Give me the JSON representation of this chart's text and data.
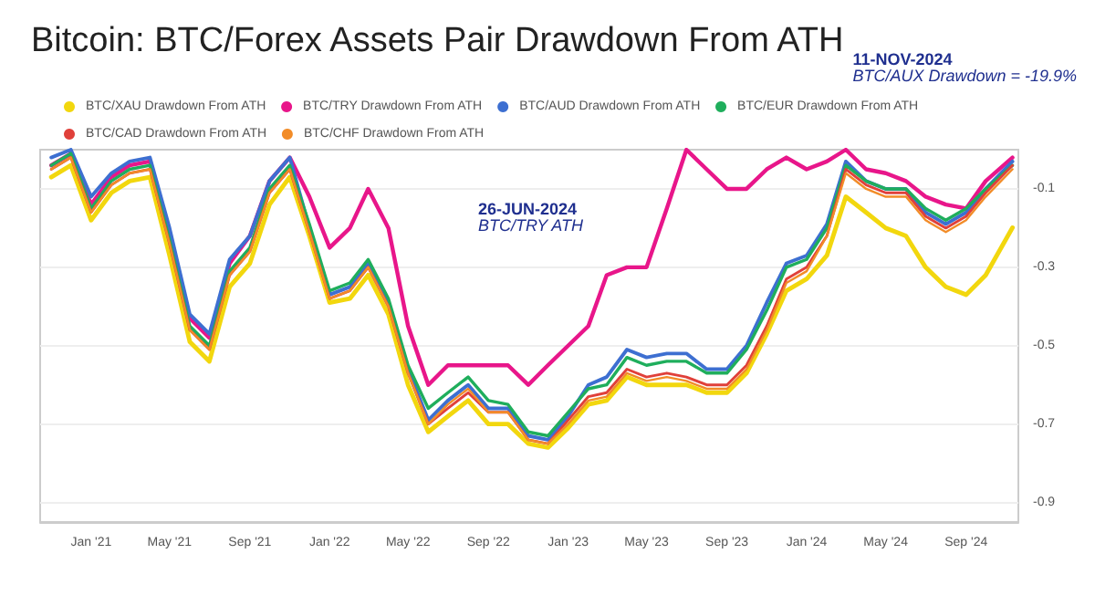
{
  "chart_data": {
    "type": "line",
    "title": "Bitcoin: BTC/Forex Assets Pair Drawdown From ATH",
    "annotations": [
      "26-JUN-2024\nBTC/TRY ATH",
      "11-NOV-2024\nBTC/AUX Drawdown = -19.9%"
    ],
    "x": [
      "2020-11-01",
      "2020-12-01",
      "2021-01-01",
      "2021-02-01",
      "2021-03-01",
      "2021-04-01",
      "2021-05-01",
      "2021-06-01",
      "2021-07-01",
      "2021-08-01",
      "2021-09-01",
      "2021-10-01",
      "2021-11-01",
      "2021-12-01",
      "2022-01-01",
      "2022-02-01",
      "2022-03-01",
      "2022-04-01",
      "2022-05-01",
      "2022-06-01",
      "2022-07-01",
      "2022-08-01",
      "2022-09-01",
      "2022-10-01",
      "2022-11-01",
      "2022-12-01",
      "2023-01-01",
      "2023-02-01",
      "2023-03-01",
      "2023-04-01",
      "2023-05-01",
      "2023-06-01",
      "2023-07-01",
      "2023-08-01",
      "2023-09-01",
      "2023-10-01",
      "2023-11-01",
      "2023-12-01",
      "2024-01-01",
      "2024-02-01",
      "2024-03-01",
      "2024-04-01",
      "2024-05-01",
      "2024-06-01",
      "2024-07-01",
      "2024-08-01",
      "2024-09-01",
      "2024-10-01",
      "2024-11-11"
    ],
    "series": [
      {
        "name": "BTC/XAU Drawdown From ATH",
        "color": "#f2d70e",
        "values": [
          -0.07,
          -0.04,
          -0.18,
          -0.11,
          -0.08,
          -0.07,
          -0.27,
          -0.49,
          -0.54,
          -0.35,
          -0.29,
          -0.14,
          -0.07,
          -0.22,
          -0.39,
          -0.38,
          -0.32,
          -0.42,
          -0.6,
          -0.72,
          -0.68,
          -0.64,
          -0.7,
          -0.7,
          -0.75,
          -0.76,
          -0.71,
          -0.65,
          -0.64,
          -0.58,
          -0.6,
          -0.6,
          -0.6,
          -0.62,
          -0.62,
          -0.57,
          -0.47,
          -0.36,
          -0.33,
          -0.27,
          -0.12,
          -0.16,
          -0.2,
          -0.22,
          -0.3,
          -0.35,
          -0.37,
          -0.32,
          -0.199
        ]
      },
      {
        "name": "BTC/TRY Drawdown From ATH",
        "color": "#e8168a",
        "values": [
          -0.04,
          -0.01,
          -0.14,
          -0.07,
          -0.04,
          -0.03,
          -0.21,
          -0.43,
          -0.48,
          -0.29,
          -0.22,
          -0.08,
          -0.02,
          -0.12,
          -0.25,
          -0.2,
          -0.1,
          -0.2,
          -0.45,
          -0.6,
          -0.55,
          -0.55,
          -0.55,
          -0.55,
          -0.6,
          -0.55,
          -0.5,
          -0.45,
          -0.32,
          -0.3,
          -0.3,
          -0.15,
          0,
          -0.05,
          -0.1,
          -0.1,
          -0.05,
          -0.02,
          -0.05,
          -0.03,
          0,
          -0.05,
          -0.06,
          -0.08,
          -0.12,
          -0.14,
          -0.15,
          -0.08,
          -0.02
        ]
      },
      {
        "name": "BTC/AUD Drawdown From ATH",
        "color": "#3d6fd1",
        "values": [
          -0.02,
          0,
          -0.12,
          -0.06,
          -0.03,
          -0.02,
          -0.2,
          -0.42,
          -0.47,
          -0.28,
          -0.22,
          -0.08,
          -0.02,
          -0.2,
          -0.37,
          -0.35,
          -0.29,
          -0.39,
          -0.56,
          -0.69,
          -0.64,
          -0.6,
          -0.66,
          -0.66,
          -0.73,
          -0.74,
          -0.68,
          -0.6,
          -0.58,
          -0.51,
          -0.53,
          -0.52,
          -0.52,
          -0.56,
          -0.56,
          -0.5,
          -0.39,
          -0.29,
          -0.27,
          -0.19,
          -0.03,
          -0.08,
          -0.1,
          -0.1,
          -0.16,
          -0.19,
          -0.16,
          -0.1,
          -0.03
        ]
      },
      {
        "name": "BTC/EUR Drawdown From ATH",
        "color": "#1fae5c",
        "values": [
          -0.04,
          -0.01,
          -0.15,
          -0.08,
          -0.05,
          -0.04,
          -0.23,
          -0.45,
          -0.5,
          -0.31,
          -0.25,
          -0.1,
          -0.04,
          -0.19,
          -0.36,
          -0.34,
          -0.28,
          -0.38,
          -0.55,
          -0.66,
          -0.62,
          -0.58,
          -0.64,
          -0.65,
          -0.72,
          -0.73,
          -0.67,
          -0.61,
          -0.6,
          -0.53,
          -0.55,
          -0.54,
          -0.54,
          -0.57,
          -0.57,
          -0.51,
          -0.41,
          -0.3,
          -0.28,
          -0.2,
          -0.04,
          -0.08,
          -0.1,
          -0.1,
          -0.15,
          -0.18,
          -0.15,
          -0.1,
          -0.04
        ]
      },
      {
        "name": "BTC/CAD Drawdown From ATH",
        "color": "#e0403a",
        "values": [
          -0.05,
          -0.02,
          -0.16,
          -0.09,
          -0.06,
          -0.05,
          -0.24,
          -0.46,
          -0.51,
          -0.32,
          -0.26,
          -0.11,
          -0.05,
          -0.21,
          -0.38,
          -0.36,
          -0.3,
          -0.4,
          -0.57,
          -0.7,
          -0.66,
          -0.62,
          -0.67,
          -0.67,
          -0.74,
          -0.75,
          -0.69,
          -0.63,
          -0.62,
          -0.56,
          -0.58,
          -0.57,
          -0.58,
          -0.6,
          -0.6,
          -0.55,
          -0.45,
          -0.33,
          -0.3,
          -0.22,
          -0.05,
          -0.09,
          -0.11,
          -0.11,
          -0.17,
          -0.2,
          -0.17,
          -0.11,
          -0.04
        ]
      },
      {
        "name": "BTC/CHF Drawdown From ATH",
        "color": "#f28c28",
        "values": [
          -0.05,
          -0.02,
          -0.16,
          -0.09,
          -0.06,
          -0.05,
          -0.24,
          -0.46,
          -0.51,
          -0.32,
          -0.26,
          -0.11,
          -0.05,
          -0.21,
          -0.38,
          -0.36,
          -0.3,
          -0.4,
          -0.57,
          -0.7,
          -0.65,
          -0.61,
          -0.67,
          -0.67,
          -0.74,
          -0.75,
          -0.7,
          -0.64,
          -0.63,
          -0.57,
          -0.59,
          -0.58,
          -0.59,
          -0.61,
          -0.61,
          -0.56,
          -0.46,
          -0.34,
          -0.31,
          -0.22,
          -0.06,
          -0.1,
          -0.12,
          -0.12,
          -0.18,
          -0.21,
          -0.18,
          -0.12,
          -0.05
        ]
      }
    ],
    "xlim": [
      "2020-10-15",
      "2024-11-20"
    ],
    "xticks": [
      {
        "value": "2021-01-01",
        "label": "Jan '21"
      },
      {
        "value": "2021-05-01",
        "label": "May '21"
      },
      {
        "value": "2021-09-01",
        "label": "Sep '21"
      },
      {
        "value": "2022-01-01",
        "label": "Jan '22"
      },
      {
        "value": "2022-05-01",
        "label": "May '22"
      },
      {
        "value": "2022-09-01",
        "label": "Sep '22"
      },
      {
        "value": "2023-01-01",
        "label": "Jan '23"
      },
      {
        "value": "2023-05-01",
        "label": "May '23"
      },
      {
        "value": "2023-09-01",
        "label": "Sep '23"
      },
      {
        "value": "2024-01-01",
        "label": "Jan '24"
      },
      {
        "value": "2024-05-01",
        "label": "May '24"
      },
      {
        "value": "2024-09-01",
        "label": "Sep '24"
      }
    ],
    "ylim": [
      -0.95,
      0
    ],
    "yticks": [
      -0.1,
      -0.3,
      -0.5,
      -0.7,
      -0.9
    ],
    "grid": "y",
    "legend": "top",
    "marker": "none",
    "line_style": "solid"
  }
}
